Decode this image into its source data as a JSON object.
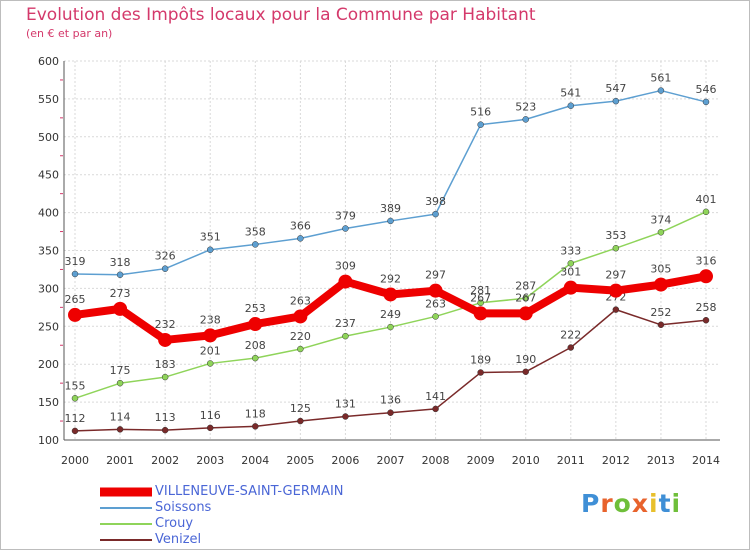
{
  "title": "Evolution des Impôts locaux pour la Commune par Habitant",
  "subtitle": "(en € et par an)",
  "brand": {
    "text": "Proxiti",
    "letters": [
      "P",
      "r",
      "o",
      "x",
      "i",
      "t",
      "i"
    ],
    "colors": [
      "#3f8fd6",
      "#e8632d",
      "#6fbf3a",
      "#e8632d",
      "#e8c02d",
      "#3f8fd6",
      "#6fbf3a"
    ]
  },
  "chart_data": {
    "type": "line",
    "x": [
      2000,
      2001,
      2002,
      2003,
      2004,
      2005,
      2006,
      2007,
      2008,
      2009,
      2010,
      2011,
      2012,
      2013,
      2014
    ],
    "ylim": [
      100,
      600
    ],
    "yticks": [
      100,
      150,
      200,
      250,
      300,
      350,
      400,
      450,
      500,
      550,
      600
    ],
    "grid": true,
    "legend_position": "bottom-left",
    "series": [
      {
        "name": "VILLENEUVE-SAINT-GERMAIN",
        "color": "#ee0000",
        "emphasis": true,
        "values": [
          265,
          273,
          232,
          238,
          253,
          263,
          309,
          292,
          297,
          267,
          267,
          301,
          297,
          305,
          316
        ]
      },
      {
        "name": "Soissons",
        "color": "#5d9fd1",
        "values": [
          319,
          318,
          326,
          351,
          358,
          366,
          379,
          389,
          398,
          516,
          523,
          541,
          547,
          561,
          546
        ]
      },
      {
        "name": "Crouy",
        "color": "#8fd45a",
        "values": [
          155,
          175,
          183,
          201,
          208,
          220,
          237,
          249,
          263,
          281,
          287,
          333,
          353,
          374,
          401
        ]
      },
      {
        "name": "Venizel",
        "color": "#7a2a2a",
        "values": [
          112,
          114,
          113,
          116,
          118,
          125,
          131,
          136,
          141,
          189,
          190,
          222,
          272,
          252,
          258
        ]
      }
    ]
  }
}
